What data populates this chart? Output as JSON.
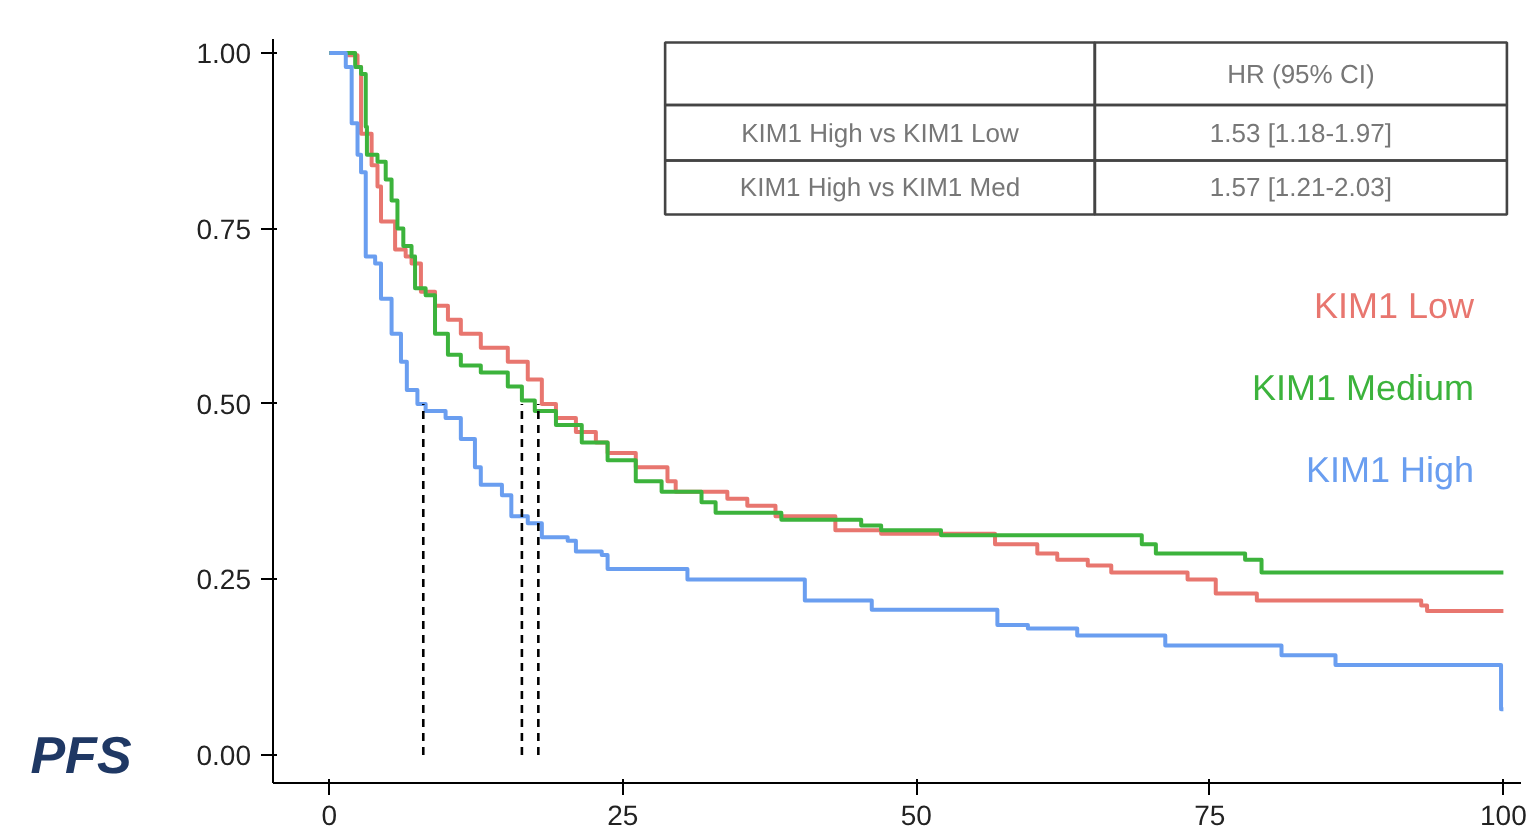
{
  "chart_data": {
    "type": "step",
    "ylabel": "PFS",
    "xlim": [
      -4.8,
      101.5
    ],
    "ylim": [
      -0.04,
      1.02
    ],
    "xticks": [
      0,
      25,
      50,
      75,
      100
    ],
    "yticks": [
      {
        "value": 0,
        "label": "0.00"
      },
      {
        "value": 0.25,
        "label": "0.25"
      },
      {
        "value": 0.5,
        "label": "0.50"
      },
      {
        "value": 0.75,
        "label": "0.75"
      },
      {
        "value": 1,
        "label": "1.00"
      }
    ],
    "grid": false,
    "legend": "right",
    "line_style": "solid",
    "annotations": [
      "HR (95% CI)",
      "KIM1 High vs KIM1 Low",
      "1.53 [1.18-1.97]",
      "KIM1 High vs KIM1 Med",
      "1.57 [1.21-2.03]"
    ],
    "series": [
      {
        "name": "KIM1 Low",
        "color": "#e8766f",
        "x": [
          0,
          1.5,
          2.4,
          2.7,
          3.6,
          4.1,
          4.4,
          5.6,
          6.5,
          7.0,
          7.8,
          9.0,
          10.1,
          11.2,
          12.9,
          15.2,
          16.9,
          18.1,
          19.3,
          21.0,
          22.7,
          23.7,
          26.1,
          28.8,
          29.5,
          33.9,
          35.6,
          38.0,
          43.1,
          47.0,
          56.7,
          60.3,
          62.0,
          64.6,
          66.6,
          73.1,
          75.5,
          79.0,
          93.0,
          93.5,
          100
        ],
        "values": [
          1,
          0.997,
          0.98,
          0.885,
          0.84,
          0.81,
          0.76,
          0.72,
          0.71,
          0.7,
          0.66,
          0.64,
          0.62,
          0.6,
          0.58,
          0.56,
          0.535,
          0.5,
          0.48,
          0.46,
          0.445,
          0.43,
          0.41,
          0.39,
          0.375,
          0.365,
          0.355,
          0.34,
          0.32,
          0.315,
          0.3,
          0.287,
          0.278,
          0.27,
          0.26,
          0.25,
          0.23,
          0.22,
          0.213,
          0.205,
          0.205
        ]
      },
      {
        "name": "KIM1 Medium",
        "color": "#3cb33c",
        "x": [
          0,
          2.2,
          2.7,
          3.1,
          3.2,
          4.1,
          4.8,
          5.3,
          5.8,
          6.3,
          7.0,
          7.3,
          8.2,
          9.0,
          10.1,
          11.2,
          12.9,
          15.2,
          16.4,
          17.5,
          19.3,
          21.5,
          23.7,
          26.1,
          28.3,
          31.7,
          32.9,
          38.5,
          45.3,
          47.0,
          52.1,
          69.2,
          70.4,
          78.0,
          79.4,
          100
        ],
        "values": [
          1,
          0.98,
          0.97,
          0.895,
          0.855,
          0.845,
          0.82,
          0.79,
          0.75,
          0.725,
          0.71,
          0.665,
          0.655,
          0.6,
          0.57,
          0.555,
          0.545,
          0.525,
          0.505,
          0.49,
          0.47,
          0.445,
          0.42,
          0.39,
          0.375,
          0.36,
          0.345,
          0.335,
          0.327,
          0.32,
          0.313,
          0.3,
          0.287,
          0.278,
          0.26,
          0.26
        ]
      },
      {
        "name": "KIM1 High",
        "color": "#6a9ef0",
        "x": [
          0,
          1.4,
          1.9,
          2.4,
          2.7,
          3.1,
          3.9,
          4.4,
          5.3,
          6.1,
          6.6,
          7.5,
          8.2,
          9.9,
          11.2,
          12.4,
          12.9,
          14.7,
          15.5,
          16.9,
          18.1,
          20.3,
          21.0,
          23.2,
          23.7,
          30.5,
          40.5,
          46.2,
          56.9,
          59.5,
          63.7,
          71.2,
          81.1,
          85.7,
          99.8,
          100
        ],
        "values": [
          1,
          0.98,
          0.9,
          0.855,
          0.83,
          0.71,
          0.7,
          0.65,
          0.6,
          0.56,
          0.52,
          0.5,
          0.49,
          0.48,
          0.45,
          0.41,
          0.385,
          0.37,
          0.34,
          0.33,
          0.31,
          0.305,
          0.29,
          0.285,
          0.265,
          0.25,
          0.22,
          0.207,
          0.185,
          0.18,
          0.17,
          0.156,
          0.142,
          0.128,
          0.065,
          0.065
        ]
      },
      {
        "type": "line",
        "color": "#000000",
        "line_style": "dashed",
        "x": [
          8,
          8
        ],
        "values": [
          0,
          0.5
        ]
      },
      {
        "type": "line",
        "color": "#000000",
        "line_style": "dashed",
        "x": [
          16.4,
          16.4
        ],
        "values": [
          0,
          0.5
        ]
      },
      {
        "type": "line",
        "color": "#000000",
        "line_style": "dashed",
        "x": [
          17.8,
          17.8
        ],
        "values": [
          0,
          0.5
        ]
      }
    ]
  }
}
